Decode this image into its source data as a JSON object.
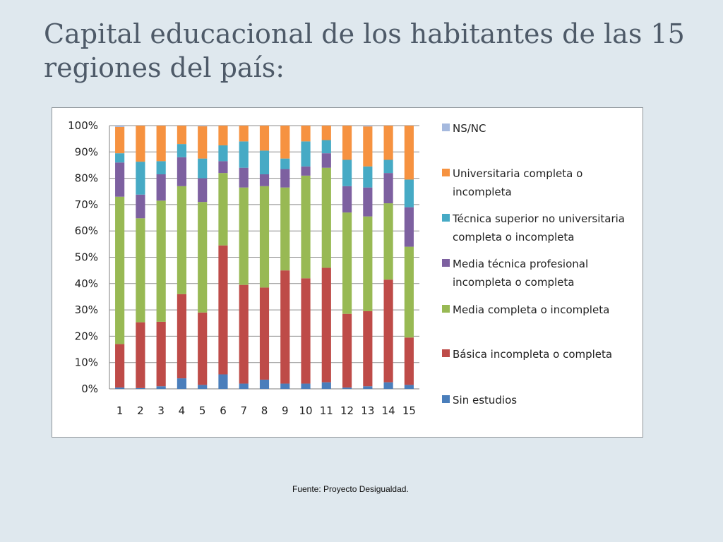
{
  "slide": {
    "title": "Capital educacional de los habitantes de las 15 regiones del país:",
    "source": "Fuente: Proyecto Desigualdad."
  },
  "chart_data": {
    "type": "bar",
    "stacked": "percent",
    "title": "",
    "xlabel": "",
    "ylabel": "",
    "ylim": [
      0,
      100
    ],
    "y_ticks": [
      "0%",
      "10%",
      "20%",
      "30%",
      "40%",
      "50%",
      "60%",
      "70%",
      "80%",
      "90%",
      "100%"
    ],
    "grid": true,
    "legend_position": "right",
    "categories": [
      "1",
      "2",
      "3",
      "4",
      "5",
      "6",
      "7",
      "8",
      "9",
      "10",
      "11",
      "12",
      "13",
      "14",
      "15"
    ],
    "series": [
      {
        "name": "Sin estudios",
        "color": "#4a7ebb",
        "values": [
          0.5,
          0.3,
          1.0,
          4.0,
          1.5,
          5.5,
          2.0,
          3.5,
          2.0,
          2.0,
          2.5,
          0.5,
          1.0,
          2.5,
          1.5
        ]
      },
      {
        "name": "Básica incompleta o completa",
        "color": "#be4b48",
        "values": [
          16.5,
          25.0,
          24.5,
          32.0,
          27.5,
          49.0,
          37.5,
          35.0,
          43.0,
          40.0,
          43.5,
          28.0,
          28.5,
          39.0,
          18.0
        ]
      },
      {
        "name": "Media completa o incompleta",
        "color": "#98b954",
        "values": [
          56.0,
          39.5,
          46.0,
          41.0,
          42.0,
          27.5,
          37.0,
          38.5,
          31.5,
          39.0,
          38.0,
          38.5,
          36.0,
          29.0,
          34.5
        ]
      },
      {
        "name": "Media técnica profesional incompleta o completa",
        "color": "#7d60a0",
        "values": [
          13.0,
          9.0,
          10.0,
          11.0,
          9.0,
          4.5,
          7.5,
          4.5,
          7.0,
          3.5,
          5.5,
          10.0,
          11.0,
          11.5,
          15.0
        ]
      },
      {
        "name": "Técnica superior no universitaria completa o incompleta",
        "color": "#46aac5",
        "values": [
          3.5,
          12.5,
          5.0,
          5.0,
          7.5,
          6.0,
          10.0,
          9.0,
          4.0,
          9.5,
          5.0,
          10.0,
          8.0,
          5.0,
          10.5
        ]
      },
      {
        "name": "Universitaria completa o incompleta",
        "color": "#f69240",
        "values": [
          10.0,
          13.7,
          13.5,
          7.0,
          12.3,
          7.5,
          6.0,
          9.5,
          12.5,
          6.0,
          5.5,
          13.0,
          15.2,
          13.0,
          20.5
        ]
      },
      {
        "name": "NS/NC",
        "color": "#a5b9de",
        "values": [
          0.5,
          0.0,
          0.0,
          0.0,
          0.2,
          0.0,
          0.0,
          0.0,
          0.0,
          0.0,
          0.0,
          0.0,
          0.3,
          0.0,
          0.0
        ]
      }
    ],
    "legend_order": [
      {
        "label": "NS/NC",
        "color": "#a5b9de"
      },
      {
        "label": "Universitaria completa o incompleta",
        "lines": [
          "Universitaria completa o",
          "incompleta"
        ],
        "color": "#f69240"
      },
      {
        "label": "Técnica superior no universitaria completa o incompleta",
        "lines": [
          "Técnica superior no universitaria",
          "completa o incompleta"
        ],
        "color": "#46aac5"
      },
      {
        "label": "Media técnica profesional incompleta o completa",
        "lines": [
          "Media técnica profesional",
          "incompleta o completa"
        ],
        "color": "#7d60a0"
      },
      {
        "label": "Media completa o incompleta",
        "color": "#98b954"
      },
      {
        "label": "Básica incompleta o completa",
        "color": "#be4b48"
      },
      {
        "label": "Sin estudios",
        "color": "#4a7ebb"
      }
    ]
  }
}
